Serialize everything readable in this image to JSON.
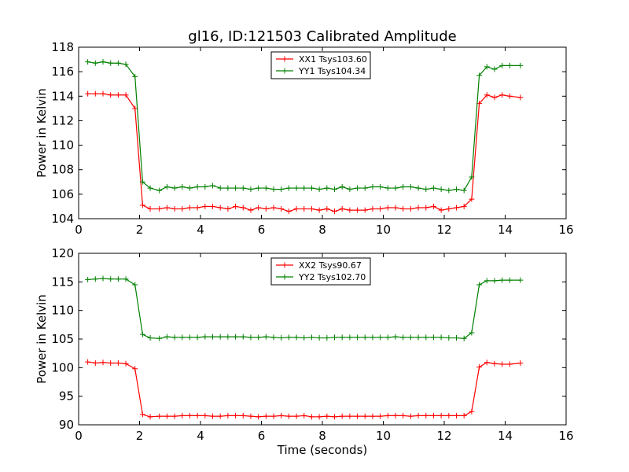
{
  "figure": {
    "title": "gl16, ID:121503 Calibrated Amplitude"
  },
  "chart_data": [
    {
      "type": "line",
      "title": "gl16, ID:121503 Calibrated Amplitude",
      "xlabel": "",
      "ylabel": "Power in Kelvin",
      "xlim": [
        0,
        16
      ],
      "ylim": [
        104,
        118
      ],
      "xticks": [
        "0",
        "2",
        "4",
        "6",
        "8",
        "10",
        "12",
        "14",
        "16"
      ],
      "yticks": [
        "104",
        "106",
        "108",
        "110",
        "112",
        "114",
        "116",
        "118"
      ],
      "grid": false,
      "legend": "upper center",
      "x": [
        0.3,
        0.55,
        0.8,
        1.05,
        1.3,
        1.55,
        1.85,
        2.1,
        2.35,
        2.65,
        2.9,
        3.15,
        3.4,
        3.65,
        3.9,
        4.15,
        4.4,
        4.65,
        4.9,
        5.15,
        5.4,
        5.65,
        5.9,
        6.15,
        6.4,
        6.65,
        6.9,
        7.15,
        7.4,
        7.65,
        7.9,
        8.15,
        8.4,
        8.65,
        8.9,
        9.15,
        9.4,
        9.65,
        9.9,
        10.15,
        10.4,
        10.65,
        10.9,
        11.15,
        11.4,
        11.65,
        11.9,
        12.15,
        12.4,
        12.65,
        12.9,
        13.15,
        13.4,
        13.65,
        13.9,
        14.15,
        14.5
      ],
      "series": [
        {
          "name": "XX1 Tsys103.60",
          "color": "#ff0000",
          "values": [
            114.2,
            114.2,
            114.2,
            114.1,
            114.1,
            114.1,
            113.0,
            105.1,
            104.8,
            104.8,
            104.9,
            104.8,
            104.8,
            104.9,
            104.9,
            105.0,
            105.0,
            104.9,
            104.8,
            105.0,
            104.9,
            104.7,
            104.9,
            104.8,
            104.9,
            104.8,
            104.6,
            104.8,
            104.8,
            104.8,
            104.7,
            104.8,
            104.6,
            104.8,
            104.7,
            104.7,
            104.7,
            104.8,
            104.8,
            104.9,
            104.9,
            104.8,
            104.8,
            104.9,
            104.9,
            105.0,
            104.7,
            104.8,
            104.9,
            105.0,
            105.6,
            113.4,
            114.1,
            113.9,
            114.1,
            114.0,
            113.9
          ]
        },
        {
          "name": "YY1 Tsys104.34",
          "color": "#008000",
          "values": [
            116.8,
            116.7,
            116.8,
            116.7,
            116.7,
            116.6,
            115.6,
            107.0,
            106.5,
            106.3,
            106.6,
            106.5,
            106.6,
            106.5,
            106.6,
            106.6,
            106.7,
            106.5,
            106.5,
            106.5,
            106.5,
            106.4,
            106.5,
            106.5,
            106.4,
            106.4,
            106.5,
            106.5,
            106.5,
            106.5,
            106.4,
            106.5,
            106.4,
            106.6,
            106.4,
            106.5,
            106.5,
            106.6,
            106.6,
            106.5,
            106.5,
            106.6,
            106.6,
            106.5,
            106.4,
            106.5,
            106.4,
            106.3,
            106.4,
            106.3,
            107.4,
            115.7,
            116.4,
            116.2,
            116.5,
            116.5,
            116.5
          ]
        }
      ]
    },
    {
      "type": "line",
      "title": "",
      "xlabel": "Time (seconds)",
      "ylabel": "Power in Kelvin",
      "xlim": [
        0,
        16
      ],
      "ylim": [
        90,
        120
      ],
      "xticks": [
        "0",
        "2",
        "4",
        "6",
        "8",
        "10",
        "12",
        "14",
        "16"
      ],
      "yticks": [
        "90",
        "95",
        "100",
        "105",
        "110",
        "115",
        "120"
      ],
      "grid": false,
      "legend": "upper center",
      "x": [
        0.3,
        0.55,
        0.8,
        1.05,
        1.3,
        1.55,
        1.85,
        2.1,
        2.35,
        2.65,
        2.9,
        3.15,
        3.4,
        3.65,
        3.9,
        4.15,
        4.4,
        4.65,
        4.9,
        5.15,
        5.4,
        5.65,
        5.9,
        6.15,
        6.4,
        6.65,
        6.9,
        7.15,
        7.4,
        7.65,
        7.9,
        8.15,
        8.4,
        8.65,
        8.9,
        9.15,
        9.4,
        9.65,
        9.9,
        10.15,
        10.4,
        10.65,
        10.9,
        11.15,
        11.4,
        11.65,
        11.9,
        12.15,
        12.4,
        12.65,
        12.9,
        13.15,
        13.4,
        13.65,
        13.9,
        14.15,
        14.5
      ],
      "series": [
        {
          "name": "XX2 Tsys90.67",
          "color": "#ff0000",
          "values": [
            101.0,
            100.8,
            100.9,
            100.8,
            100.8,
            100.7,
            99.8,
            91.8,
            91.4,
            91.5,
            91.5,
            91.5,
            91.6,
            91.6,
            91.6,
            91.6,
            91.5,
            91.5,
            91.6,
            91.6,
            91.6,
            91.5,
            91.4,
            91.5,
            91.5,
            91.6,
            91.5,
            91.5,
            91.6,
            91.4,
            91.4,
            91.5,
            91.4,
            91.5,
            91.5,
            91.5,
            91.5,
            91.5,
            91.5,
            91.6,
            91.6,
            91.6,
            91.5,
            91.6,
            91.6,
            91.6,
            91.6,
            91.6,
            91.6,
            91.6,
            92.3,
            100.1,
            100.9,
            100.7,
            100.6,
            100.6,
            100.8
          ]
        },
        {
          "name": "YY2 Tsys102.70",
          "color": "#008000",
          "values": [
            115.4,
            115.5,
            115.6,
            115.5,
            115.5,
            115.5,
            114.5,
            105.8,
            105.2,
            105.1,
            105.4,
            105.3,
            105.3,
            105.3,
            105.3,
            105.4,
            105.4,
            105.4,
            105.4,
            105.4,
            105.4,
            105.3,
            105.3,
            105.4,
            105.3,
            105.2,
            105.3,
            105.3,
            105.2,
            105.3,
            105.2,
            105.2,
            105.3,
            105.3,
            105.3,
            105.3,
            105.3,
            105.3,
            105.3,
            105.3,
            105.4,
            105.3,
            105.3,
            105.3,
            105.3,
            105.3,
            105.3,
            105.2,
            105.2,
            105.1,
            106.1,
            114.5,
            115.2,
            115.2,
            115.3,
            115.3,
            115.3
          ]
        }
      ]
    }
  ]
}
